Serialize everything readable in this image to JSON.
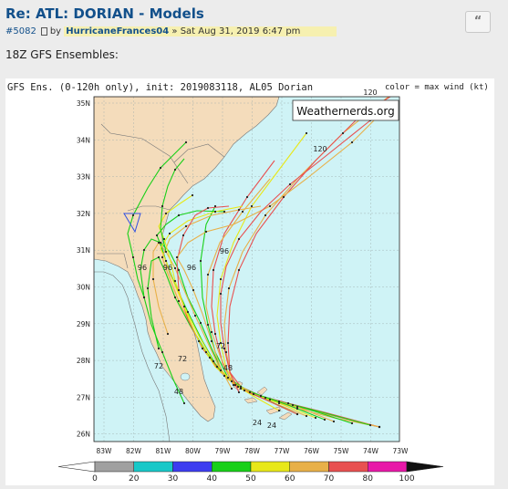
{
  "post": {
    "title": "Re: ATL: DORIAN - Models",
    "post_number": "#5082",
    "by_label": "by",
    "author": "HurricaneFrances04",
    "date": "» Sat Aug 31, 2019 6:47 pm",
    "quote_label": "“",
    "body_text": "18Z GFS Ensembles:"
  },
  "figure": {
    "header": "GFS Ens. (0-120h only), init: 2019083118, AL05 Dorian",
    "color_note": "color = max wind (kt)",
    "watermark": "Weathernerds.org"
  },
  "chart_data": {
    "type": "map",
    "lon_ticks": [
      "83W",
      "82W",
      "81W",
      "80W",
      "79W",
      "78W",
      "77W",
      "76W",
      "75W",
      "74W",
      "73W"
    ],
    "lat_ticks": [
      "35N",
      "34N",
      "33N",
      "32N",
      "31N",
      "30N",
      "29N",
      "28N",
      "27N",
      "26N"
    ],
    "colorbar": {
      "ticks": [
        "0",
        "20",
        "30",
        "40",
        "50",
        "60",
        "70",
        "80",
        "100"
      ],
      "colors": [
        "#a0a0a0",
        "#18c8c8",
        "#3c3cf0",
        "#18d018",
        "#e8e818",
        "#e8b048",
        "#e85050",
        "#e818a8"
      ]
    },
    "hour_labels": [
      "120",
      "120",
      "96",
      "96",
      "96",
      "96",
      "72",
      "72",
      "72",
      "48",
      "48",
      "24",
      "24"
    ]
  }
}
